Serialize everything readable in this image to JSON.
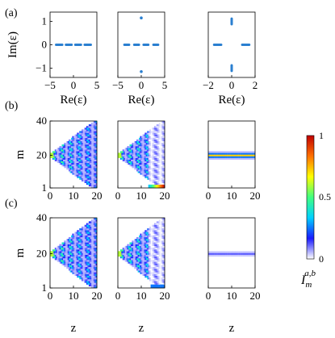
{
  "panel_labels": [
    "(a)",
    "(b)",
    "(c)"
  ],
  "colorbar": {
    "label": "I",
    "label_sub": "m",
    "label_sup": "a,b",
    "ticks": [
      "1",
      "0.5",
      "0"
    ],
    "min": 0,
    "max": 1,
    "colormap": [
      "#ffffff",
      "#1a1aff",
      "#00d0ff",
      "#40ff80",
      "#ffff00",
      "#ff7000",
      "#c00000"
    ]
  },
  "chart_data": [
    {
      "panel": "(a)",
      "col": 1,
      "type": "scatter",
      "xlabel_text": "Re",
      "ylabel_text": "Im",
      "axis_var": "(ε)",
      "xlim": [
        -5,
        5
      ],
      "ylim": [
        -1.4,
        1.4
      ],
      "xticks": [
        "-5",
        "0",
        "5"
      ],
      "yticks": [
        "1",
        "0",
        "-1"
      ],
      "point_color": "#2a7fd0",
      "segments": [
        [
          -3.7,
          -2.4
        ],
        [
          -1.6,
          -0.4
        ],
        [
          0.4,
          1.6
        ],
        [
          2.4,
          3.7
        ]
      ],
      "points": []
    },
    {
      "panel": "(a)",
      "col": 2,
      "type": "scatter",
      "xticks": [
        "-5",
        "0",
        "5"
      ],
      "xlim": [
        -5,
        5
      ],
      "ylim": [
        -1.4,
        1.4
      ],
      "xlabel_text": "Re",
      "axis_var": "(ε)",
      "point_color": "#2a7fd0",
      "segments": [
        [
          -3.6,
          -2.6
        ],
        [
          -1.5,
          -0.5
        ],
        [
          0.5,
          1.5
        ],
        [
          2.6,
          3.6
        ]
      ],
      "points": [
        [
          0,
          1.15
        ],
        [
          0,
          -1.15
        ]
      ]
    },
    {
      "panel": "(a)",
      "col": 3,
      "type": "scatter",
      "xticks": [
        "-2",
        "0",
        "2"
      ],
      "xlim": [
        -2,
        2
      ],
      "ylim": [
        -1.4,
        1.4
      ],
      "xlabel_text": "Re",
      "axis_var": "(ε)",
      "point_color": "#2a7fd0",
      "segments": [
        [
          -1.5,
          -0.9
        ],
        [
          0.9,
          1.5
        ]
      ],
      "vsegments": [
        [
          0.88,
          1.12
        ],
        [
          -1.12,
          -0.88
        ]
      ],
      "points": []
    },
    {
      "panel": "(b)",
      "col": 1,
      "type": "heatmap",
      "pattern": "ballistic",
      "ylabel": "m",
      "xlim": [
        0,
        20
      ],
      "ylim": [
        1,
        40
      ],
      "xticks": [
        "0",
        "10",
        "20"
      ],
      "yticks": [
        "40",
        "20",
        "1"
      ],
      "source_m": 20
    },
    {
      "panel": "(b)",
      "col": 2,
      "type": "heatmap",
      "pattern": "ballistic_edge",
      "xlim": [
        0,
        20
      ],
      "ylim": [
        1,
        40
      ],
      "xticks": [
        "0",
        "10",
        "20"
      ],
      "source_m": 20,
      "edge_start_z": 13
    },
    {
      "panel": "(b)",
      "col": 3,
      "type": "heatmap",
      "pattern": "localized",
      "xlim": [
        0,
        20
      ],
      "ylim": [
        1,
        40
      ],
      "xticks": [
        "0",
        "10",
        "20"
      ],
      "source_m": 20
    },
    {
      "panel": "(c)",
      "col": 1,
      "type": "heatmap",
      "pattern": "ballistic",
      "ylabel": "m",
      "xlim": [
        0,
        20
      ],
      "ylim": [
        1,
        40
      ],
      "xticks": [
        "0",
        "10",
        "20"
      ],
      "yticks": [
        "40",
        "20",
        "1"
      ],
      "source_m": 20
    },
    {
      "panel": "(c)",
      "col": 2,
      "type": "heatmap",
      "pattern": "ballistic_edge_weak",
      "xlabel": "z",
      "xlim": [
        0,
        20
      ],
      "ylim": [
        1,
        40
      ],
      "xticks": [
        "0",
        "10",
        "20"
      ],
      "source_m": 20,
      "edge_start_z": 14
    },
    {
      "panel": "(c)",
      "col": 3,
      "type": "heatmap",
      "pattern": "localized_weak",
      "xlabel": "z",
      "xlim": [
        0,
        20
      ],
      "ylim": [
        1,
        40
      ],
      "xticks": [
        "0",
        "10",
        "20"
      ],
      "source_m": 20
    }
  ],
  "bottom_xlabel": "z"
}
